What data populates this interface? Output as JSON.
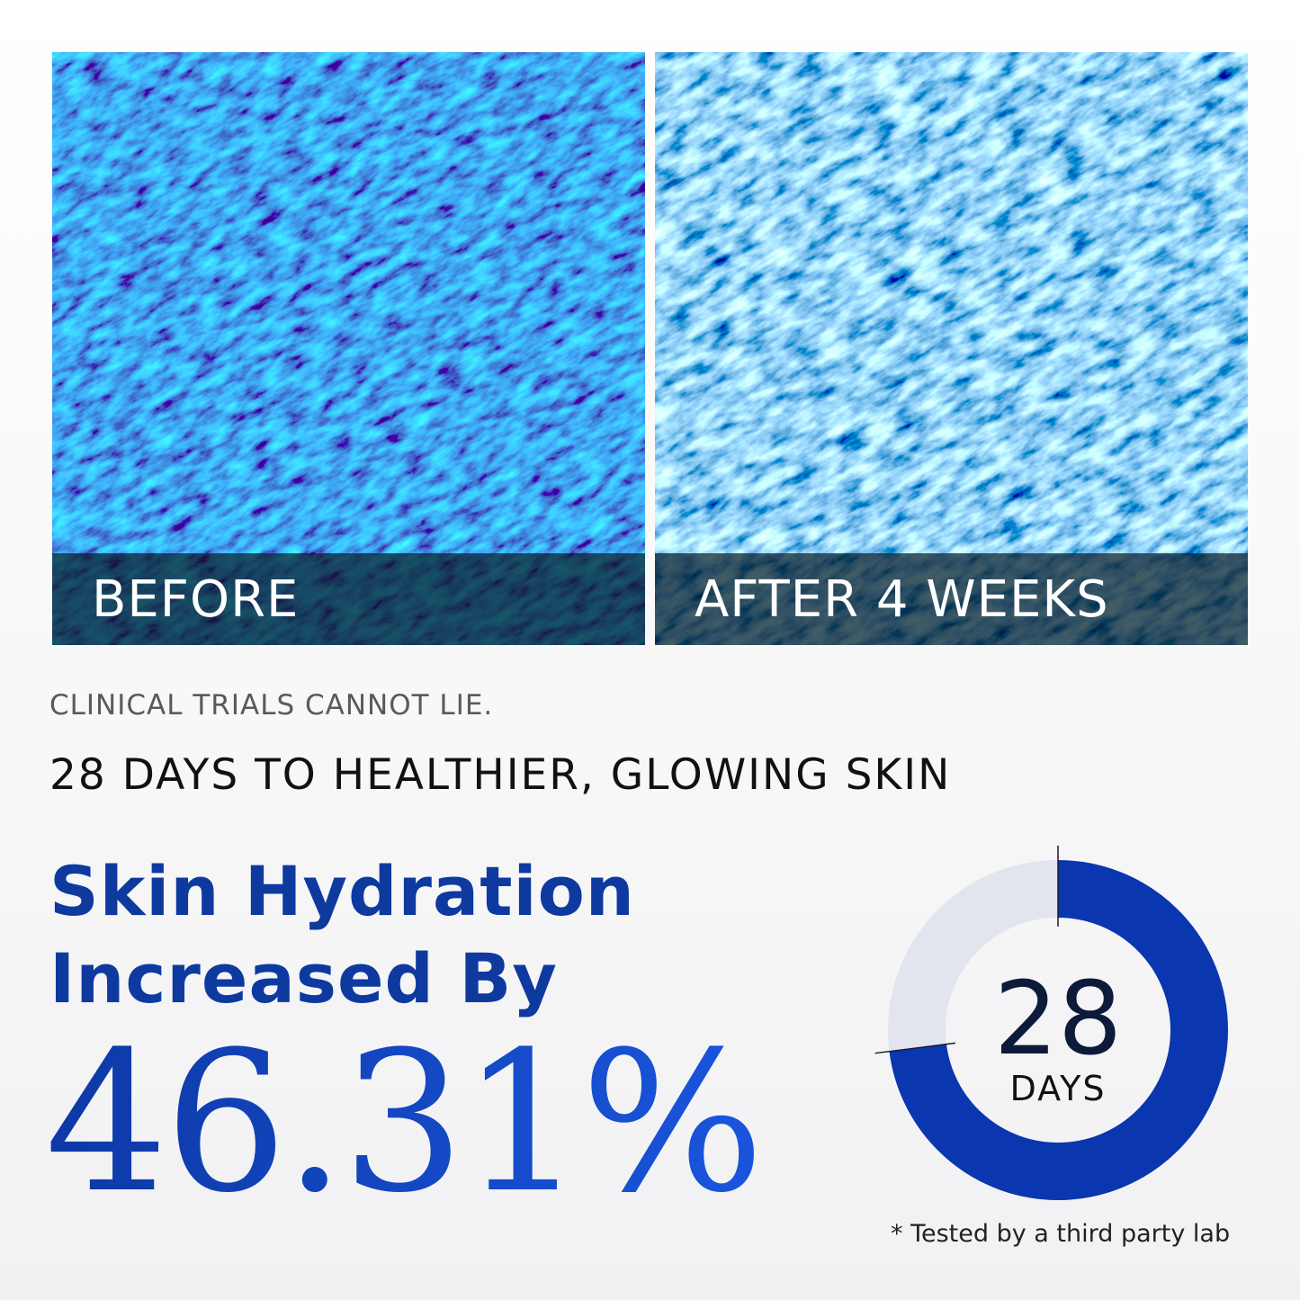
{
  "before_panel": {
    "label": "BEFORE"
  },
  "after_panel": {
    "label": "AFTER 4 WEEKS"
  },
  "kicker": "CLINICAL TRIALS CANNOT LIE.",
  "headline": "28 DAYS TO HEALTHIER, GLOWING SKIN",
  "result": {
    "title_line1": "Skin Hydration",
    "title_line2": "Increased By",
    "value": "46.31%"
  },
  "donut": {
    "number": "28",
    "unit": "DAYS",
    "filled_fraction": 0.73,
    "fill_color": "#0a36b0",
    "track_color": "#e2e5ee"
  },
  "footnote": "* Tested by a third party lab",
  "colors": {
    "brand_blue": "#0e3aa0",
    "accent_blue": "#1a55dd"
  }
}
